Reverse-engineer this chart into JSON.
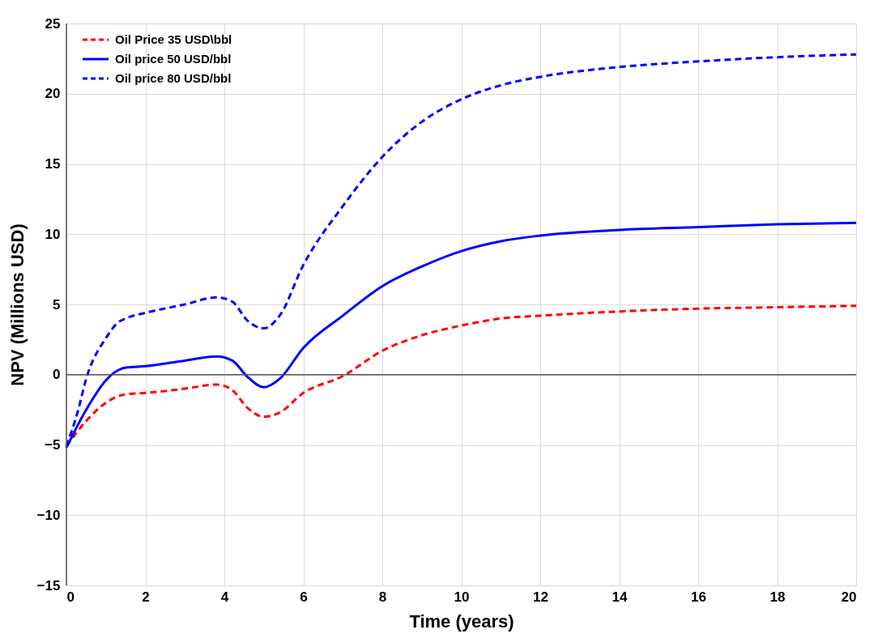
{
  "chart_data": {
    "type": "line",
    "xlabel": "Time (years)",
    "ylabel": "NPV (Millions USD)",
    "xlim": [
      0,
      20
    ],
    "xticks": [
      0,
      2,
      4,
      6,
      8,
      10,
      12,
      14,
      16,
      18,
      20
    ],
    "ylim": [
      -15,
      25
    ],
    "yticks": [
      -15,
      -10,
      -5,
      0,
      5,
      10,
      15,
      20,
      25
    ],
    "grid": true,
    "legend": "top left",
    "marker": "none",
    "series": [
      {
        "name": "Oil Price 35 USD\\bbl",
        "color": "#ff0000",
        "line_style": "dashed",
        "x": [
          0,
          0.5,
          1,
          1.5,
          2,
          3,
          3.8,
          4.2,
          4.6,
          5,
          5.4,
          6,
          7,
          8,
          9,
          10,
          11,
          12,
          14,
          16,
          18,
          20
        ],
        "values": [
          -5.1,
          -3.3,
          -2.0,
          -1.4,
          -1.3,
          -1.0,
          -0.7,
          -1.1,
          -2.4,
          -3.0,
          -2.7,
          -1.3,
          -0.1,
          1.7,
          2.8,
          3.5,
          4.0,
          4.2,
          4.5,
          4.7,
          4.8,
          4.9
        ]
      },
      {
        "name": "Oil price 50 USD/bbl",
        "color": "#0000ff",
        "line_style": "solid",
        "x": [
          0,
          0.5,
          1,
          1.3,
          1.5,
          2,
          3,
          3.8,
          4.2,
          4.6,
          5,
          5.4,
          6,
          7,
          8,
          9,
          10,
          11,
          12,
          14,
          16,
          18,
          20
        ],
        "values": [
          -5.2,
          -2.5,
          -0.4,
          0.3,
          0.5,
          0.6,
          1.0,
          1.3,
          1.0,
          -0.2,
          -0.9,
          -0.3,
          1.9,
          4.2,
          6.3,
          7.7,
          8.8,
          9.5,
          9.9,
          10.3,
          10.5,
          10.7,
          10.8
        ]
      },
      {
        "name": "Oil price 80 USD/bbl",
        "color": "#0000ff",
        "line_style": "dashed",
        "x": [
          0,
          0.3,
          0.5,
          1,
          1.3,
          1.5,
          2,
          3,
          3.8,
          4.2,
          4.6,
          5,
          5.4,
          6,
          7,
          8,
          9,
          10,
          11,
          12,
          14,
          16,
          18,
          20
        ],
        "values": [
          -5.1,
          -2.5,
          -0.3,
          2.6,
          3.7,
          4.0,
          4.4,
          5.0,
          5.5,
          5.2,
          3.8,
          3.3,
          4.2,
          7.8,
          12.0,
          15.5,
          18.0,
          19.6,
          20.6,
          21.2,
          21.9,
          22.3,
          22.6,
          22.8
        ]
      }
    ]
  }
}
